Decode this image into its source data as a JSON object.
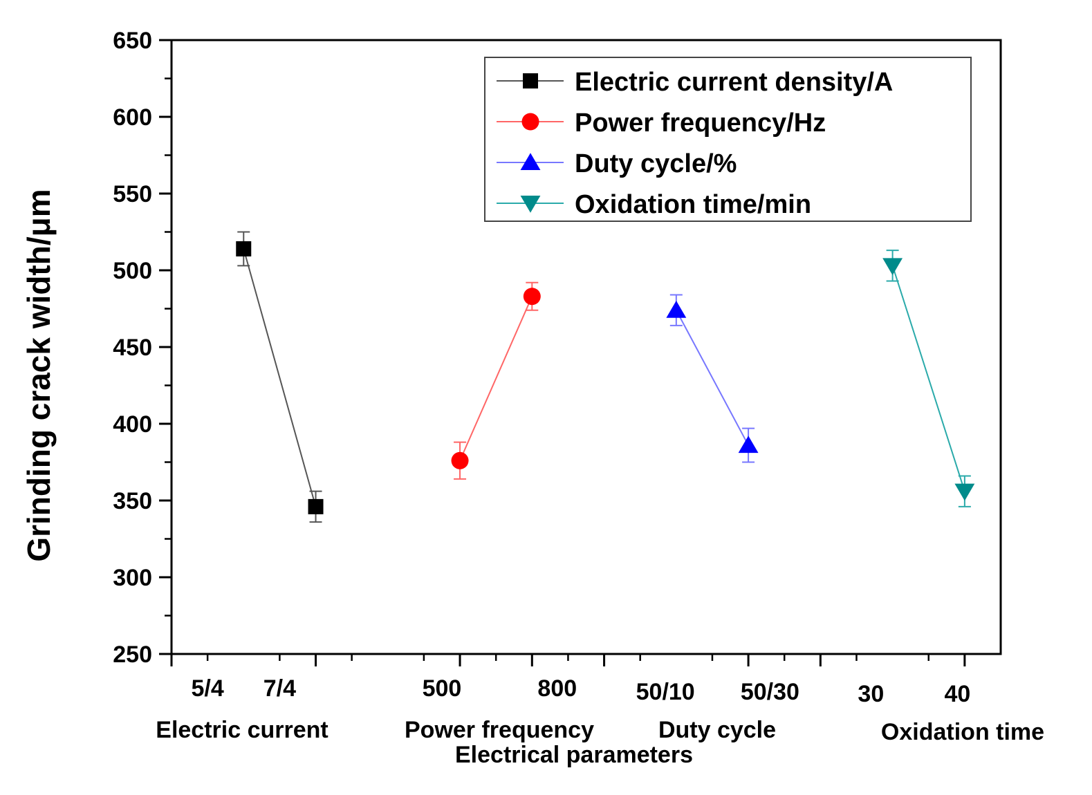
{
  "chart_data": {
    "type": "line",
    "title": "",
    "ylabel": "Grinding crack width/μm",
    "xlabel": "Electrical parameters",
    "ylim": [
      250,
      650
    ],
    "yticks": [
      250,
      300,
      350,
      400,
      450,
      500,
      550,
      600,
      650
    ],
    "legend_position": "top-right",
    "groups": [
      {
        "name": "Electric current",
        "categories": [
          "5/4",
          "7/4"
        ]
      },
      {
        "name": "Power frequency",
        "categories": [
          "500",
          "800"
        ]
      },
      {
        "name": "Duty cycle",
        "categories": [
          "50/10",
          "50/30"
        ]
      },
      {
        "name": "Oxidation time",
        "categories": [
          "30",
          "40"
        ]
      }
    ],
    "series": [
      {
        "name": "Electric current density/A",
        "marker": "square",
        "color": "#000000",
        "line_color": "#555555",
        "points": [
          {
            "x": 1.0,
            "y": 514,
            "err": 11
          },
          {
            "x": 2.0,
            "y": 346,
            "err": 10
          }
        ]
      },
      {
        "name": "Power frequency/Hz",
        "marker": "circle",
        "color": "#ff0000",
        "line_color": "#ff6666",
        "points": [
          {
            "x": 4.0,
            "y": 376,
            "err": 12
          },
          {
            "x": 5.0,
            "y": 483,
            "err": 9
          }
        ]
      },
      {
        "name": "Duty cycle/%",
        "marker": "triangle-up",
        "color": "#0000ff",
        "line_color": "#7777ff",
        "points": [
          {
            "x": 7.0,
            "y": 474,
            "err": 10
          },
          {
            "x": 8.0,
            "y": 386,
            "err": 11
          }
        ]
      },
      {
        "name": "Oxidation time/min",
        "marker": "triangle-down",
        "color": "#008b8b",
        "line_color": "#2aaaaa",
        "points": [
          {
            "x": 10.0,
            "y": 503,
            "err": 10
          },
          {
            "x": 11.0,
            "y": 356,
            "err": 10
          }
        ]
      }
    ]
  }
}
